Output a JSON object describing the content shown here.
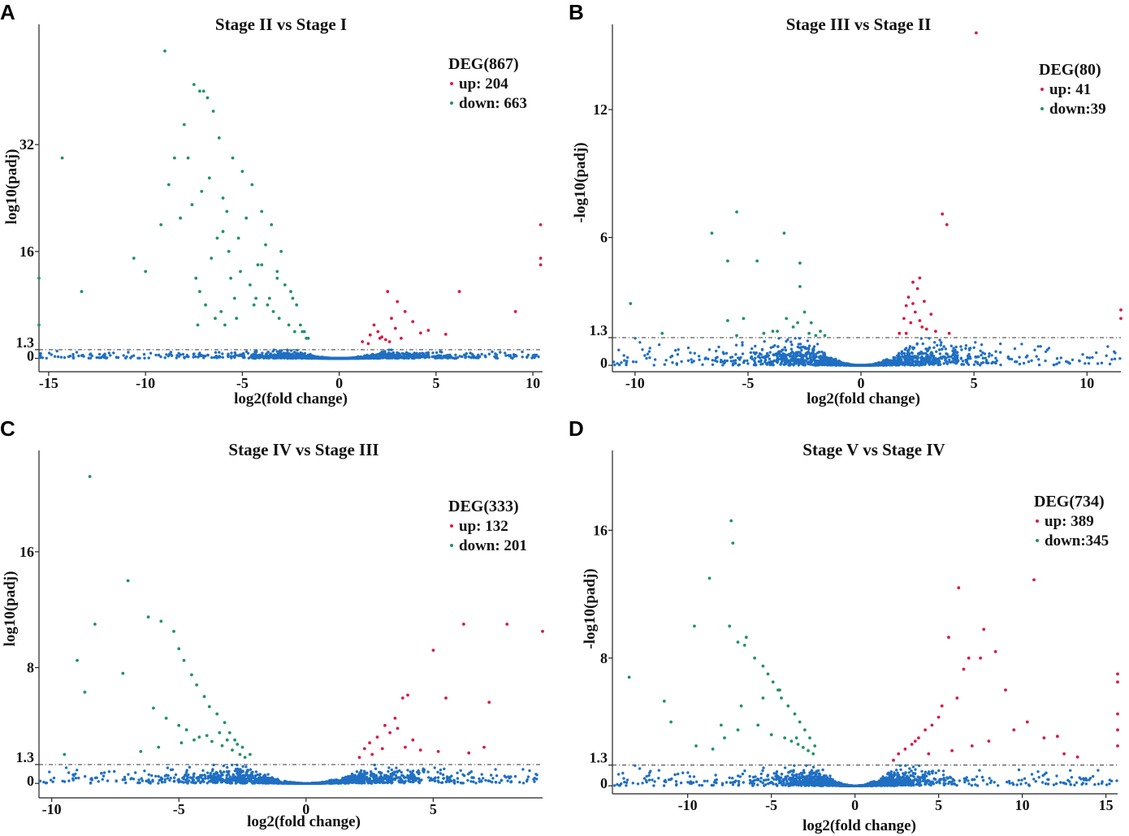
{
  "figure_labels": [
    "A",
    "B",
    "C",
    "D"
  ],
  "colors": {
    "up": "#d81b45",
    "down": "#1e9462",
    "ns": "#1f6fc2",
    "axis": "#222222"
  },
  "chart_data": [
    {
      "panel": "A",
      "type": "scatter",
      "title": "Stage II vs Stage I",
      "xlabel": "log2(fold change)",
      "ylabel": "log10(padj)",
      "xlim": [
        -15.5,
        10.5
      ],
      "ylim": [
        -2,
        50
      ],
      "xticks": [
        -15,
        -10,
        -5,
        0,
        5,
        10
      ],
      "xtick_labels": [
        "-15",
        "-10",
        "-5",
        "0",
        "5",
        "10"
      ],
      "yticks": [
        0,
        1.3,
        16,
        32
      ],
      "ytick_labels": [
        "0",
        "1.3",
        "16",
        "32"
      ],
      "threshold": 1.3,
      "legend": {
        "title": "DEG(867)",
        "items": [
          {
            "label": "up: 204",
            "class": "up"
          },
          {
            "label": "down: 663",
            "class": "down"
          }
        ]
      },
      "series": [
        {
          "name": "up",
          "x": [
            1.2,
            1.6,
            2.0,
            2.4,
            1.8,
            2.2,
            2.7,
            3.0,
            2.5,
            3.4,
            2.9,
            3.8,
            4.2,
            2.1,
            1.5,
            2.6,
            3.2,
            4.6,
            5.5,
            6.2,
            9.1,
            10.4,
            10.4,
            10.4
          ],
          "y": [
            2.5,
            3.5,
            4.0,
            2.8,
            5.0,
            3.2,
            6.0,
            8.5,
            10.0,
            7.0,
            4.5,
            5.5,
            3.8,
            3.0,
            2.2,
            2.5,
            3.0,
            4.2,
            3.6,
            10.0,
            7.0,
            20.0,
            15.0,
            14.0
          ]
        },
        {
          "name": "down",
          "x": [
            -9.0,
            -7.5,
            -7.2,
            -6.8,
            -7.0,
            -6.5,
            -6.2,
            -5.5,
            -5.0,
            -4.5,
            -4.0,
            -3.5,
            -3.0,
            -2.5,
            -2.0,
            -1.6,
            -6.0,
            -5.8,
            -5.2,
            -4.8,
            -4.2,
            -3.8,
            -3.2,
            -2.8,
            -2.2,
            -1.8,
            -8.0,
            -7.8,
            -8.5,
            -8.8,
            -9.2,
            -6.6,
            -6.0,
            -5.6,
            -5.4,
            -4.6,
            -4.4,
            -3.6,
            -3.4,
            -2.6,
            -7.4,
            -7.2,
            -6.9,
            -6.4,
            -5.9,
            -14.3,
            -10.6,
            -10.0,
            -13.3,
            -15.5,
            -15.5,
            -4.0,
            -3.2,
            -2.4,
            -1.9,
            -6.7,
            -7.1,
            -7.6,
            -8.2,
            -6.3,
            -5.7,
            -5.1,
            -4.3,
            -3.7,
            -3.1,
            -2.3,
            -1.7,
            -7.3,
            -6.1,
            -5.3
          ],
          "y": [
            46,
            41,
            40,
            39,
            40,
            37,
            33,
            30,
            28,
            26,
            22,
            20,
            16,
            10,
            5,
            3,
            24,
            22,
            18,
            21,
            14,
            17,
            12,
            11,
            8,
            4,
            35,
            30,
            30,
            26,
            20,
            15,
            19,
            12,
            9,
            11,
            8,
            9,
            7,
            5,
            12,
            10,
            8,
            6,
            5,
            30,
            15,
            13,
            10,
            12,
            5,
            14,
            13,
            9,
            4,
            27,
            25,
            23,
            21,
            18,
            16,
            13,
            9,
            8,
            6,
            4,
            3,
            5,
            7,
            6
          ]
        },
        {
          "name": "ns",
          "x": [],
          "y": []
        }
      ]
    },
    {
      "panel": "B",
      "type": "scatter",
      "title": "Stage III vs Stage II",
      "xlabel": "log2(fold change)",
      "ylabel": "-log10(padj)",
      "xlim": [
        -11,
        11.5
      ],
      "ylim": [
        -0.3,
        16
      ],
      "xticks": [
        -10,
        -5,
        0,
        5,
        10
      ],
      "xtick_labels": [
        "-10",
        "-5",
        "0",
        "5",
        "10"
      ],
      "yticks": [
        0,
        1.3,
        6,
        12
      ],
      "ytick_labels": [
        "0",
        "1.3",
        "6",
        "12"
      ],
      "threshold": 1.3,
      "legend": {
        "title": "DEG(80)",
        "items": [
          {
            "label": "up: 41",
            "class": "up"
          },
          {
            "label": "down:39",
            "class": "down"
          }
        ]
      },
      "series": [
        {
          "name": "up",
          "x": [
            5.1,
            3.6,
            3.8,
            2.3,
            2.6,
            2.1,
            2.0,
            2.4,
            2.8,
            1.9,
            2.2,
            2.7,
            3.3,
            3.9,
            1.7,
            2.5,
            3.1,
            11.5,
            11.5,
            2.9,
            2.0,
            2.3,
            2.6
          ],
          "y": [
            15.6,
            7.1,
            6.6,
            3.9,
            4.1,
            3.2,
            2.8,
            2.5,
            3.0,
            2.2,
            2.0,
            1.8,
            1.6,
            1.5,
            1.5,
            3.6,
            2.4,
            2.6,
            2.2,
            1.7,
            1.5,
            2.9,
            2.1
          ]
        },
        {
          "name": "down",
          "x": [
            -5.5,
            -6.6,
            -5.9,
            -4.6,
            -3.4,
            -2.7,
            -2.7,
            -2.5,
            -3.3,
            -2.8,
            -5.9,
            -5.2,
            -3.7,
            -3.9,
            -2.2,
            -1.8,
            -10.2,
            -8.8,
            -5.5,
            -3.0,
            -2.3,
            -2.0,
            -4.3,
            -1.6
          ],
          "y": [
            7.2,
            6.2,
            4.9,
            4.9,
            6.2,
            4.8,
            3.7,
            2.5,
            2.2,
            2.0,
            2.1,
            2.2,
            1.6,
            1.6,
            2.0,
            1.6,
            2.9,
            1.5,
            1.4,
            1.8,
            1.5,
            1.4,
            1.5,
            1.4
          ]
        },
        {
          "name": "ns",
          "x": [],
          "y": []
        }
      ]
    },
    {
      "panel": "C",
      "type": "scatter",
      "title": "Stage IV vs Stage III",
      "xlabel": "log2(fold change)",
      "ylabel": "log10(padj)",
      "xlim": [
        -10.5,
        9.3
      ],
      "ylim": [
        -1,
        23
      ],
      "xticks": [
        -10,
        -5,
        0,
        5
      ],
      "xtick_labels": [
        "-10",
        "-5",
        "0",
        "5"
      ],
      "yticks": [
        0,
        1.3,
        8,
        16
      ],
      "ytick_labels": [
        "0",
        "1.3",
        "8",
        "16"
      ],
      "threshold": 1.3,
      "legend": {
        "title": "DEG(333)",
        "items": [
          {
            "label": "up: 132",
            "class": "up"
          },
          {
            "label": "down: 201",
            "class": "down"
          }
        ]
      },
      "series": [
        {
          "name": "up",
          "x": [
            6.2,
            7.9,
            9.3,
            5.0,
            4.0,
            3.8,
            5.5,
            7.2,
            3.5,
            3.1,
            3.3,
            2.8,
            2.5,
            2.3,
            3.9,
            4.5,
            5.2,
            6.4,
            7.0,
            2.1,
            2.6,
            3.0,
            3.6,
            4.2
          ],
          "y": [
            11,
            11,
            10.5,
            9.2,
            6.1,
            5.9,
            5.9,
            5.6,
            4.5,
            4.0,
            3.5,
            3.2,
            2.8,
            2.4,
            2.5,
            2.3,
            2.2,
            2.1,
            2.5,
            1.8,
            2.0,
            2.4,
            3.8,
            3.0
          ]
        },
        {
          "name": "down",
          "x": [
            -8.5,
            -7.0,
            -8.3,
            -6.2,
            -5.7,
            -5.2,
            -5.0,
            -4.8,
            -4.5,
            -4.3,
            -4.0,
            -3.8,
            -3.5,
            -3.2,
            -3.0,
            -2.8,
            -2.5,
            -2.2,
            -9.0,
            -8.7,
            -7.2,
            -6.0,
            -5.5,
            -5.0,
            -4.7,
            -4.2,
            -3.7,
            -3.3,
            -2.9,
            -2.6,
            -9.5,
            -6.5,
            -5.8,
            -4.9,
            -4.4,
            -3.9,
            -3.4,
            -3.1,
            -2.7,
            -2.4
          ],
          "y": [
            21.2,
            14,
            11,
            11.5,
            11.2,
            10.5,
            9.3,
            8.5,
            7.5,
            6.8,
            6.0,
            5.3,
            4.8,
            4.2,
            3.5,
            3.0,
            2.5,
            2.0,
            8.5,
            6.3,
            7.6,
            5.2,
            4.5,
            4.0,
            3.7,
            3.2,
            2.9,
            2.6,
            2.3,
            2.0,
            2.0,
            2.2,
            2.5,
            2.8,
            3.0,
            3.3,
            3.5,
            3.0,
            2.7,
            1.8
          ]
        },
        {
          "name": "ns",
          "x": [],
          "y": []
        }
      ]
    },
    {
      "panel": "D",
      "type": "scatter",
      "title": "Stage V vs Stage IV",
      "xlabel": "log2(fold change)",
      "ylabel": "-log10(padj)",
      "xlim": [
        -14.5,
        15.7
      ],
      "ylim": [
        -0.5,
        21
      ],
      "xticks": [
        -10,
        -5,
        0,
        5,
        10,
        15
      ],
      "xtick_labels": [
        "-10",
        "-5",
        "0",
        "5",
        "10",
        "15"
      ],
      "yticks": [
        0,
        1.3,
        8,
        16
      ],
      "ytick_labels": [
        "0",
        "1.3",
        "8",
        "16"
      ],
      "threshold": 1.3,
      "legend": {
        "title": "DEG(734)",
        "items": [
          {
            "label": "up: 389",
            "class": "up"
          },
          {
            "label": "down:345",
            "class": "down"
          }
        ]
      },
      "series": [
        {
          "name": "up",
          "x": [
            6.2,
            10.7,
            5.6,
            8.4,
            7.5,
            6.8,
            6.5,
            6.1,
            5.2,
            5.0,
            4.6,
            4.2,
            3.8,
            3.4,
            3.0,
            2.6,
            2.3,
            7.7,
            9.0,
            9.5,
            10.3,
            11.3,
            12.1,
            12.5,
            13.3,
            8.0,
            7.0,
            5.8,
            4.4,
            3.6,
            15.7,
            15.7,
            15.7,
            15.7,
            15.7
          ],
          "y": [
            12.4,
            12.9,
            9.3,
            8.4,
            8.0,
            8.0,
            7.3,
            5.5,
            5.0,
            4.3,
            3.8,
            3.5,
            3.0,
            2.6,
            2.3,
            2.0,
            1.6,
            9.8,
            6.0,
            3.5,
            4.0,
            3.0,
            3.1,
            2.0,
            1.8,
            2.8,
            2.5,
            2.2,
            2.0,
            2.8,
            7.0,
            6.5,
            4.5,
            3.5,
            2.5
          ]
        },
        {
          "name": "down",
          "x": [
            -7.4,
            -7.3,
            -8.7,
            -9.6,
            -7.5,
            -7.0,
            -6.6,
            -6.5,
            -6.0,
            -5.5,
            -5.2,
            -4.9,
            -4.6,
            -4.4,
            -4.0,
            -3.6,
            -3.3,
            -3.0,
            -2.7,
            -2.4,
            -11.4,
            -11.0,
            -13.5,
            -9.5,
            -8.5,
            -7.8,
            -7.0,
            -5.8,
            -5.0,
            -4.2,
            -3.8,
            -3.4,
            -3.1,
            -2.8,
            -6.8,
            -5.5,
            -4.5,
            -3.5,
            -2.5,
            -8.0
          ],
          "y": [
            16.6,
            15.2,
            13.0,
            10.0,
            10.0,
            9.0,
            8.8,
            9.3,
            8.0,
            7.5,
            7.0,
            6.5,
            6.0,
            5.5,
            5.0,
            4.5,
            4.0,
            3.5,
            3.0,
            2.5,
            5.3,
            4.0,
            6.8,
            2.5,
            2.3,
            3.0,
            3.5,
            3.8,
            3.2,
            3.0,
            2.8,
            2.6,
            2.4,
            2.2,
            5.0,
            5.5,
            6.0,
            3.0,
            2.0,
            3.8
          ]
        },
        {
          "name": "ns",
          "x": [],
          "y": []
        }
      ]
    }
  ]
}
